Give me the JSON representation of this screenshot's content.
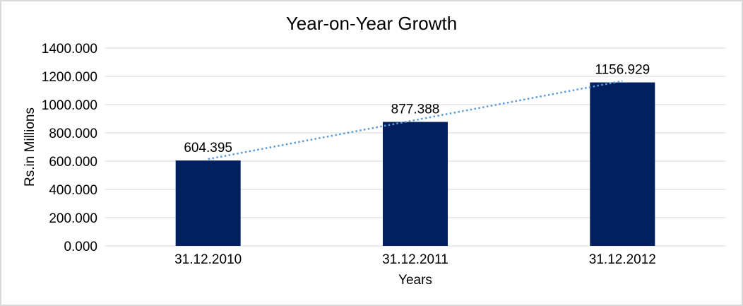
{
  "chart_data": {
    "type": "bar",
    "title": "Year-on-Year Growth",
    "xlabel": "Years",
    "ylabel": "Rs.in Millions",
    "categories": [
      "31.12.2010",
      "31.12.2011",
      "31.12.2012"
    ],
    "values": [
      604.395,
      877.388,
      1156.929
    ],
    "data_labels": [
      "604.395",
      "877.388",
      "1156.929"
    ],
    "ylim": [
      0,
      1400
    ],
    "ytick_step": 200,
    "ytick_labels": [
      "0.000",
      "200.000",
      "400.000",
      "600.000",
      "800.000",
      "1000.000",
      "1200.000",
      "1400.000"
    ],
    "grid": true,
    "legend": "none",
    "trendline": {
      "type": "linear",
      "style": "dotted"
    },
    "colors": {
      "bar": "#002060",
      "trendline": "#5B9BD5",
      "gridline": "#D9D9D9",
      "text": "#000000",
      "background": "#FFFFFF",
      "border": "#D9D9D9"
    }
  }
}
